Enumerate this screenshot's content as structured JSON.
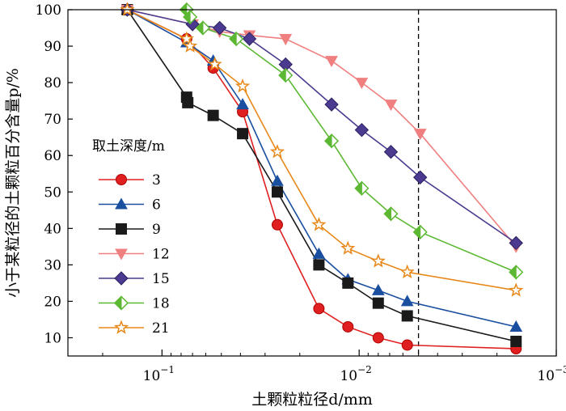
{
  "chart_data": {
    "type": "scatter",
    "xlabel": "土颗粒粒径d/mm",
    "ylabel": "小于某粒径的土颗粒百分含量p/%",
    "x_scale": "log",
    "x_reversed": true,
    "xlim": [
      0.3,
      0.001
    ],
    "ylim": [
      5,
      100
    ],
    "x_ticks": [
      {
        "value": 0.1,
        "base": "10",
        "exp": "−1"
      },
      {
        "value": 0.01,
        "base": "10",
        "exp": "−2"
      },
      {
        "value": 0.001,
        "base": "10",
        "exp": "−3"
      }
    ],
    "y_ticks": [
      10,
      20,
      30,
      40,
      50,
      60,
      70,
      80,
      90,
      100
    ],
    "reference_line_x": 0.005,
    "legend_title": "取土深度/m",
    "legend_position": "left-middle",
    "series": [
      {
        "name": "3",
        "color": "#e02020",
        "marker": "circle",
        "x": [
          0.15,
          0.075,
          0.055,
          0.039,
          0.026,
          0.016,
          0.0114,
          0.008,
          0.0057,
          0.0016
        ],
        "y": [
          100,
          92,
          84,
          72,
          41,
          18,
          13,
          10,
          8,
          7
        ]
      },
      {
        "name": "6",
        "color": "#1a4fa0",
        "marker": "triangle-up",
        "x": [
          0.15,
          0.075,
          0.055,
          0.039,
          0.026,
          0.016,
          0.0114,
          0.008,
          0.0057,
          0.0016
        ],
        "y": [
          100,
          91,
          86,
          74,
          53,
          33,
          26,
          23,
          20,
          13
        ]
      },
      {
        "name": "9",
        "color": "#1a1a1a",
        "marker": "square",
        "x": [
          0.15,
          0.075,
          0.074,
          0.055,
          0.039,
          0.026,
          0.016,
          0.0114,
          0.008,
          0.0057,
          0.0016
        ],
        "y": [
          100,
          76,
          74.5,
          71,
          66,
          50,
          30,
          25,
          19.5,
          16,
          9
        ]
      },
      {
        "name": "12",
        "color": "#f08080",
        "marker": "triangle-down",
        "x": [
          0.15,
          0.07,
          0.051,
          0.036,
          0.0236,
          0.0138,
          0.0097,
          0.0069,
          0.0049,
          0.0016
        ],
        "y": [
          100,
          96,
          94,
          93,
          92,
          86,
          80,
          74,
          66,
          35
        ]
      },
      {
        "name": "15",
        "color": "#4b3a8f",
        "marker": "diamond",
        "x": [
          0.15,
          0.07,
          0.051,
          0.036,
          0.0236,
          0.0138,
          0.0097,
          0.0069,
          0.0049,
          0.0016
        ],
        "y": [
          100,
          96,
          95,
          92,
          85,
          74,
          67,
          61,
          54,
          36
        ]
      },
      {
        "name": "18",
        "color": "#5cb832",
        "marker": "half-diamond",
        "x": [
          0.075,
          0.072,
          0.062,
          0.042,
          0.0236,
          0.0138,
          0.0097,
          0.0069,
          0.0049,
          0.0016
        ],
        "y": [
          100,
          98,
          95,
          92,
          82,
          64,
          51,
          44,
          39,
          28
        ]
      },
      {
        "name": "21",
        "color": "#e8881a",
        "marker": "star",
        "x": [
          0.15,
          0.075,
          0.072,
          0.054,
          0.039,
          0.026,
          0.016,
          0.0114,
          0.008,
          0.0057,
          0.0016
        ],
        "y": [
          100,
          92,
          90,
          85,
          79,
          61,
          41,
          34.5,
          31,
          28,
          23
        ]
      }
    ]
  }
}
